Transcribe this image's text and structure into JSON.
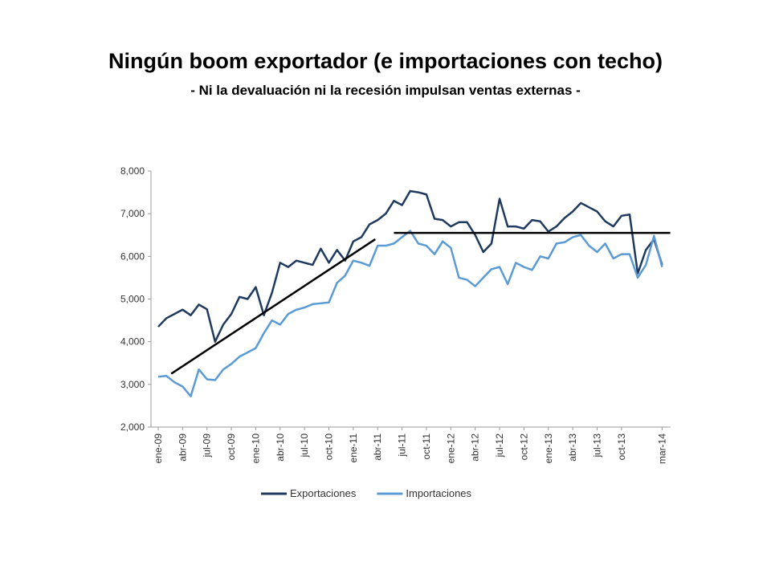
{
  "chart_data": {
    "type": "line",
    "title": "Ningún boom exportador (e importaciones con techo)",
    "subtitle": "- Ni la devaluación ni la recesión impulsan ventas externas -",
    "categories": [
      "ene-09",
      null,
      null,
      "abr-09",
      null,
      null,
      "jul-09",
      null,
      null,
      "oct-09",
      null,
      null,
      "ene-10",
      null,
      null,
      "abr-10",
      null,
      null,
      "jul-10",
      null,
      null,
      "oct-10",
      null,
      null,
      "ene-11",
      null,
      null,
      "abr-11",
      null,
      null,
      "jul-11",
      null,
      null,
      "oct-11",
      null,
      null,
      "ene-12",
      null,
      null,
      "abr-12",
      null,
      null,
      "jul-12",
      null,
      null,
      "oct-12",
      null,
      null,
      "ene-13",
      null,
      null,
      "abr-13",
      null,
      null,
      "jul-13",
      null,
      null,
      "oct-13",
      null,
      null,
      null,
      null,
      "mar-14"
    ],
    "series": [
      {
        "name": "Exportaciones",
        "color": "#1f3a5f",
        "values": [
          4350,
          4550,
          4650,
          4750,
          4620,
          4870,
          4760,
          4000,
          4400,
          4650,
          5050,
          5000,
          5280,
          4620,
          5150,
          5850,
          5750,
          5900,
          5850,
          5800,
          6180,
          5850,
          6150,
          5900,
          6350,
          6450,
          6750,
          6850,
          7000,
          7300,
          7200,
          7530,
          7500,
          7450,
          6880,
          6850,
          6700,
          6800,
          6800,
          6500,
          6100,
          6300,
          7350,
          6700,
          6700,
          6650,
          6850,
          6820,
          6580,
          6700,
          6900,
          7050,
          7250,
          7150,
          7050,
          6820,
          6700,
          6950,
          6980,
          5600,
          6150,
          6400,
          5800
        ]
      },
      {
        "name": "Importaciones",
        "color": "#5b9bd5",
        "values": [
          3180,
          3200,
          3050,
          2950,
          2720,
          3350,
          3120,
          3100,
          3350,
          3480,
          3650,
          3750,
          3850,
          4200,
          4500,
          4400,
          4650,
          4750,
          4800,
          4880,
          4900,
          4920,
          5380,
          5550,
          5900,
          5850,
          5780,
          6250,
          6250,
          6300,
          6450,
          6600,
          6300,
          6250,
          6050,
          6350,
          6200,
          5500,
          5450,
          5300,
          5500,
          5700,
          5750,
          5350,
          5850,
          5750,
          5680,
          6000,
          5950,
          6300,
          6330,
          6450,
          6500,
          6250,
          6100,
          6300,
          5950,
          6050,
          6050,
          5500,
          5800,
          6480,
          5750
        ]
      }
    ],
    "trend_lines": [
      {
        "color": "#000000",
        "x": [
          1.6,
          26.7
        ],
        "values": [
          3250,
          6400
        ]
      },
      {
        "color": "#000000",
        "x": [
          29,
          63
        ],
        "values": [
          6550,
          6550
        ]
      }
    ],
    "ylim": [
      2000,
      8000
    ],
    "yticks": [
      {
        "value": 2000,
        "label": "2,000"
      },
      {
        "value": 3000,
        "label": "3,000"
      },
      {
        "value": 4000,
        "label": "4,000"
      },
      {
        "value": 5000,
        "label": "5,000"
      },
      {
        "value": 6000,
        "label": "6,000"
      },
      {
        "value": 7000,
        "label": "7,000"
      },
      {
        "value": 8000,
        "label": "8,000"
      }
    ],
    "legend": "bottom"
  }
}
